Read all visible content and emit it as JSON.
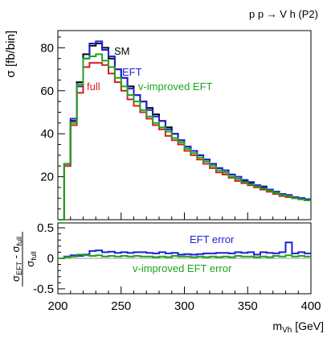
{
  "chart_data": [
    {
      "type": "line",
      "title": "p p → V h (P2)",
      "ylabel": "σ [fb/bin]",
      "xlim": [
        200,
        400
      ],
      "ylim": [
        0,
        88
      ],
      "yticks": [
        20,
        40,
        60,
        80
      ],
      "x_edges": [
        200,
        205,
        210,
        215,
        220,
        225,
        230,
        235,
        240,
        245,
        250,
        255,
        260,
        265,
        270,
        275,
        280,
        285,
        290,
        295,
        300,
        305,
        310,
        315,
        320,
        325,
        330,
        335,
        340,
        345,
        350,
        355,
        360,
        365,
        370,
        375,
        380,
        385,
        390,
        395,
        400
      ],
      "series": [
        {
          "name": "SM",
          "color": "#000000",
          "values": [
            0,
            26,
            46,
            64,
            77,
            81,
            82,
            80,
            75,
            70,
            66,
            62,
            58,
            55,
            52,
            49,
            46,
            43,
            40,
            37,
            34,
            32,
            30,
            28,
            26,
            24,
            22,
            21,
            19,
            18,
            17,
            16,
            15,
            14,
            13,
            12,
            11,
            10.5,
            10,
            9.5
          ]
        },
        {
          "name": "EFT",
          "color": "#1f1fd6",
          "values": [
            0,
            26,
            47,
            62,
            75,
            82,
            83,
            79,
            76,
            70,
            66,
            61,
            58,
            55,
            51,
            48,
            46,
            42,
            40,
            37,
            34,
            32,
            30,
            28,
            26,
            24,
            23,
            21,
            20,
            18.5,
            17.5,
            16,
            15.5,
            14,
            13,
            12,
            11.5,
            10.5,
            10,
            9.5
          ]
        },
        {
          "name": "full",
          "color": "#d61f1f",
          "values": [
            0,
            25,
            44,
            59,
            71,
            73,
            73,
            72,
            68,
            64,
            60,
            56,
            53,
            50,
            47,
            44,
            42,
            39,
            37,
            35,
            32,
            30,
            28,
            26,
            24,
            22,
            21,
            19.5,
            18,
            17,
            16,
            15,
            14,
            13,
            12,
            11,
            10.5,
            10,
            9.5,
            9
          ]
        },
        {
          "name": "v-improved EFT",
          "color": "#1fa31f",
          "values": [
            0,
            26,
            45,
            63,
            75,
            76,
            77,
            74,
            71,
            66,
            62,
            58,
            55,
            51,
            48,
            45,
            43,
            41,
            38,
            36,
            33,
            31,
            29,
            27,
            25,
            23,
            22,
            20,
            19,
            17.5,
            16.5,
            15.5,
            14.5,
            13.5,
            12.5,
            11.5,
            11,
            10,
            9.5,
            9
          ]
        }
      ],
      "annotations": [
        "SM",
        "EFT",
        "full",
        "v-improved EFT"
      ]
    },
    {
      "type": "line",
      "xlabel_base": "m",
      "xlabel_sub": "Vh",
      "xlabel_unit": " [GeV]",
      "ylabel_num": "σ",
      "ylabel_num_sub1": "EFT",
      "ylabel_num_mid": " - σ",
      "ylabel_num_sub2": "full",
      "ylabel_den": "σ",
      "ylabel_den_sub": "full",
      "xlim": [
        200,
        400
      ],
      "ylim": [
        -0.58,
        0.58
      ],
      "xticks": [
        "200",
        "250",
        "300",
        "350",
        "400"
      ],
      "yticks": [
        "0.5",
        "0",
        "-0.5"
      ],
      "reference_line": 0,
      "series": [
        {
          "name": "EFT error",
          "color": "#1f1fd6",
          "values": [
            0,
            0.03,
            0.05,
            0.04,
            0.06,
            0.12,
            0.13,
            0.1,
            0.11,
            0.09,
            0.1,
            0.09,
            0.1,
            0.1,
            0.09,
            0.08,
            0.1,
            0.08,
            0.09,
            0.06,
            0.07,
            0.06,
            0.07,
            0.08,
            0.08,
            0.09,
            0.09,
            0.08,
            0.1,
            0.09,
            0.1,
            0.06,
            0.1,
            0.09,
            0.08,
            0.1,
            0.26,
            0.08,
            0.1,
            0.08
          ]
        },
        {
          "name": "v-improved EFT error",
          "color": "#1fa31f",
          "values": [
            0,
            0.02,
            0.03,
            0.06,
            0.05,
            0.04,
            0.05,
            0.03,
            0.04,
            0.03,
            0.04,
            0.03,
            0.04,
            0.03,
            0.03,
            0.02,
            0.03,
            0.02,
            0.04,
            0.03,
            0.03,
            0.02,
            0.03,
            0.02,
            0.03,
            0.02,
            0.03,
            0.02,
            0.04,
            0.03,
            0.03,
            0.02,
            0.03,
            0.02,
            0.04,
            0.03,
            0.05,
            0.03,
            0.04,
            0.03
          ]
        }
      ],
      "annotations": [
        "EFT error",
        "v-improved EFT error"
      ]
    }
  ]
}
